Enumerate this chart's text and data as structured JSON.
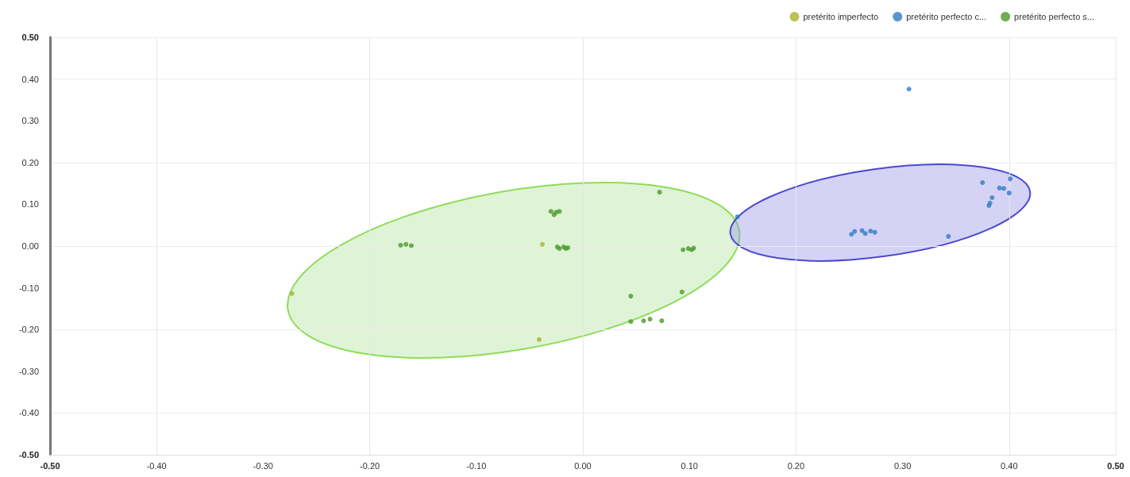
{
  "chart_data": {
    "type": "scatter",
    "legend": "top right",
    "grid": true,
    "marker": "circle",
    "xlim": [
      -0.5,
      0.5
    ],
    "ylim": [
      -0.5,
      0.5
    ],
    "xticks": [
      {
        "value": -0.5,
        "label": "-0.50"
      },
      {
        "value": -0.4,
        "label": "-0.40"
      },
      {
        "value": -0.3,
        "label": "-0.30"
      },
      {
        "value": -0.2,
        "label": "-0.20"
      },
      {
        "value": -0.1,
        "label": "-0.10"
      },
      {
        "value": 0,
        "label": "0.00"
      },
      {
        "value": 0.1,
        "label": "0.10"
      },
      {
        "value": 0.2,
        "label": "0.20"
      },
      {
        "value": 0.3,
        "label": "0.30"
      },
      {
        "value": 0.4,
        "label": "0.40"
      },
      {
        "value": 0.5,
        "label": "0.50"
      }
    ],
    "yticks": [
      {
        "value": -0.5,
        "label": "-0.50"
      },
      {
        "value": -0.4,
        "label": "-0.40"
      },
      {
        "value": -0.3,
        "label": "-0.30"
      },
      {
        "value": -0.2,
        "label": "-0.20"
      },
      {
        "value": -0.1,
        "label": "-0.10"
      },
      {
        "value": 0,
        "label": "0.00"
      },
      {
        "value": 0.1,
        "label": "0.10"
      },
      {
        "value": 0.2,
        "label": "0.20"
      },
      {
        "value": 0.3,
        "label": "0.30"
      },
      {
        "value": 0.4,
        "label": "0.40"
      },
      {
        "value": 0.5,
        "label": "0.50"
      }
    ],
    "series": [
      {
        "name": "pretérito imperfecto",
        "color": "#a9b12c",
        "x": [
          -0.273,
          -0.038,
          -0.041
        ],
        "values": [
          -0.114,
          0.004,
          -0.224
        ]
      },
      {
        "name": "pretérito perfecto c...",
        "color": "#2f7bc6",
        "x": [
          0.306,
          0.145,
          0.252,
          0.255,
          0.262,
          0.265,
          0.27,
          0.274,
          0.343,
          0.375,
          0.401,
          0.391,
          0.395,
          0.4,
          0.384,
          0.382,
          0.381
        ],
        "values": [
          0.376,
          0.07,
          0.028,
          0.035,
          0.037,
          0.03,
          0.036,
          0.033,
          0.023,
          0.152,
          0.161,
          0.139,
          0.138,
          0.127,
          0.116,
          0.103,
          0.097
        ]
      },
      {
        "name": "pretérito perfecto s...",
        "color": "#4a9a2a",
        "x": [
          -0.171,
          -0.166,
          -0.161,
          -0.03,
          -0.025,
          -0.027,
          -0.022,
          -0.024,
          -0.018,
          -0.014,
          -0.022,
          -0.016,
          0.072,
          0.094,
          0.099,
          0.104,
          0.102,
          0.045,
          0.093,
          0.045,
          0.057,
          0.063,
          0.074
        ],
        "values": [
          0.002,
          0.004,
          0.001,
          0.083,
          0.081,
          0.075,
          0.083,
          -0.002,
          -0.002,
          -0.004,
          -0.006,
          -0.006,
          0.129,
          -0.009,
          -0.006,
          -0.005,
          -0.009,
          -0.12,
          -0.11,
          -0.181,
          -0.179,
          -0.175,
          -0.179
        ]
      }
    ]
  }
}
